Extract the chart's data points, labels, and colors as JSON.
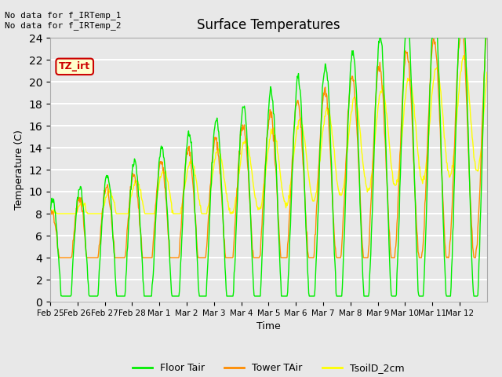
{
  "title": "Surface Temperatures",
  "xlabel": "Time",
  "ylabel": "Temperature (C)",
  "background_color": "#e8e8e8",
  "plot_bg_color": "#e8e8e8",
  "grid_color": "white",
  "ylim": [
    0,
    24
  ],
  "yticks": [
    0,
    2,
    4,
    6,
    8,
    10,
    12,
    14,
    16,
    18,
    20,
    22,
    24
  ],
  "xtick_labels": [
    "Feb 25",
    "Feb 26",
    "Feb 27",
    "Feb 28",
    "Mar 1",
    "Mar 2",
    "Mar 3",
    "Mar 4",
    "Mar 5",
    "Mar 6",
    "Mar 7",
    "Mar 8",
    "Mar 9",
    "Mar 10",
    "Mar 11",
    "Mar 12"
  ],
  "line_floor_color": "#00ee00",
  "line_tower_color": "#ff8c00",
  "line_soil_color": "#ffff00",
  "legend_labels": [
    "Floor Tair",
    "Tower TAir",
    "TsoilD_2cm"
  ],
  "annotation_text": "No data for f_IRTemp_1\nNo data for f_IRTemp_2",
  "tab_text": "TZ_irt",
  "tab_bg": "#ffffcc",
  "tab_border": "#cc0000",
  "tab_text_color": "#cc0000"
}
